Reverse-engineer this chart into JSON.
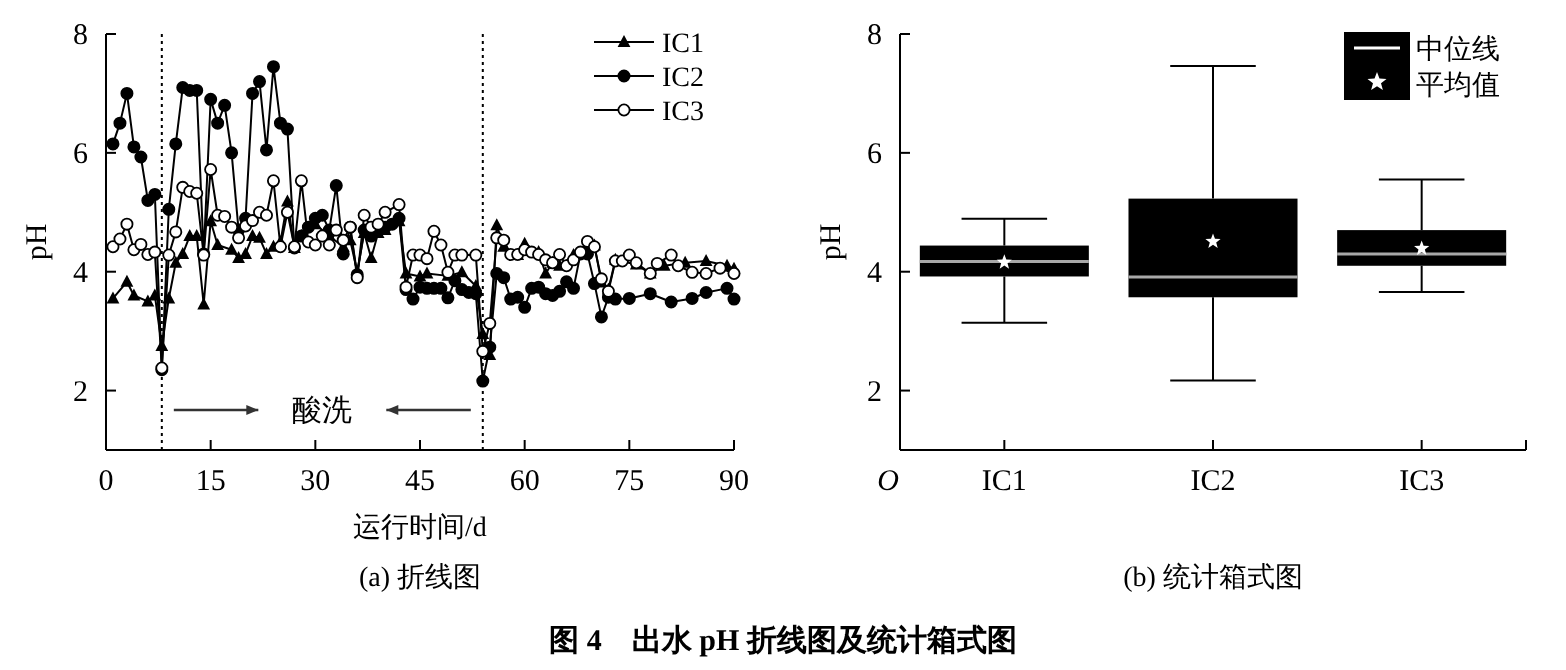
{
  "chart_data": [
    {
      "type": "line",
      "xlabel": "运行时间/d",
      "ylabel": "pH",
      "xlim": [
        0,
        90
      ],
      "ylim": [
        1,
        8
      ],
      "xticks": [
        0,
        15,
        30,
        45,
        60,
        75,
        90
      ],
      "yticks": [
        2,
        4,
        6,
        8
      ],
      "legend": "top right",
      "ref_lines": [
        {
          "axis": "x",
          "value": 8,
          "line_style": "dotted",
          "color": "#000000"
        },
        {
          "axis": "x",
          "value": 54,
          "line_style": "dotted",
          "color": "#000000"
        }
      ],
      "annotations": [
        "(a) 折线图",
        "图 4　出水 pH 折线图及统计箱式图",
        "酸洗"
      ],
      "series": [
        {
          "name": "IC1",
          "color": "#000000",
          "marker": "triangle",
          "x": [
            1,
            3,
            4,
            6,
            7,
            8,
            9,
            10,
            11,
            12,
            13,
            14,
            15,
            16,
            18,
            19,
            20,
            21,
            22,
            23,
            24,
            25,
            26,
            27,
            28,
            30,
            32,
            34,
            35,
            36,
            37,
            38,
            39,
            40,
            42,
            43,
            45,
            46,
            49,
            51,
            53,
            54,
            55,
            56,
            57,
            59,
            60,
            62,
            63,
            64,
            65,
            67,
            69,
            70,
            71,
            72,
            73,
            76,
            78,
            80,
            83,
            86,
            89,
            90
          ],
          "values": [
            3.55,
            3.83,
            3.6,
            3.5,
            3.6,
            2.75,
            3.55,
            4.15,
            4.3,
            4.6,
            4.6,
            3.45,
            4.85,
            4.45,
            4.37,
            4.23,
            4.3,
            4.6,
            4.57,
            4.3,
            4.42,
            4.5,
            5.18,
            4.4,
            4.6,
            4.8,
            4.6,
            4.42,
            4.53,
            4.0,
            4.65,
            4.23,
            4.65,
            4.7,
            4.85,
            3.97,
            3.92,
            3.97,
            3.93,
            3.99,
            3.76,
            2.95,
            2.6,
            4.78,
            4.42,
            4.28,
            4.47,
            4.33,
            3.97,
            4.15,
            4.1,
            4.28,
            4.42,
            4.44,
            3.82,
            3.7,
            4.2,
            4.12,
            3.97,
            4.1,
            4.15,
            4.18,
            4.1,
            4.05
          ]
        },
        {
          "name": "IC2",
          "color": "#000000",
          "marker": "circle",
          "x": [
            1,
            2,
            3,
            4,
            5,
            6,
            7,
            8,
            9,
            10,
            11,
            12,
            13,
            14,
            15,
            16,
            17,
            18,
            19,
            20,
            21,
            22,
            23,
            24,
            25,
            26,
            27,
            28,
            29,
            30,
            31,
            32,
            33,
            34,
            35,
            36,
            37,
            38,
            39,
            40,
            41,
            42,
            43,
            44,
            45,
            46,
            47,
            48,
            49,
            50,
            51,
            52,
            53,
            54,
            55,
            56,
            57,
            58,
            59,
            60,
            61,
            62,
            63,
            64,
            65,
            66,
            67,
            68,
            69,
            70,
            71,
            72,
            73,
            75,
            78,
            81,
            84,
            86,
            89,
            90
          ],
          "values": [
            6.15,
            6.5,
            7.0,
            6.1,
            5.93,
            5.2,
            5.3,
            2.35,
            5.05,
            6.15,
            7.1,
            7.05,
            7.05,
            4.3,
            6.9,
            6.5,
            6.8,
            6.0,
            4.7,
            4.9,
            7.0,
            7.2,
            6.05,
            7.45,
            6.5,
            6.4,
            4.4,
            4.6,
            4.75,
            4.9,
            4.95,
            4.7,
            5.45,
            4.3,
            4.75,
            3.95,
            4.7,
            4.6,
            4.7,
            4.75,
            4.8,
            4.9,
            3.7,
            3.54,
            3.74,
            3.72,
            3.72,
            3.72,
            3.56,
            3.85,
            3.7,
            3.65,
            3.63,
            2.16,
            2.73,
            3.97,
            3.9,
            3.54,
            3.57,
            3.4,
            3.72,
            3.74,
            3.63,
            3.6,
            3.67,
            3.83,
            3.72,
            4.3,
            4.3,
            3.8,
            3.24,
            3.57,
            3.54,
            3.55,
            3.63,
            3.49,
            3.55,
            3.65,
            3.72,
            3.54
          ]
        },
        {
          "name": "IC3",
          "color": "#000000",
          "marker": "circle",
          "x": [
            1,
            2,
            3,
            4,
            5,
            6,
            7,
            8,
            9,
            10,
            11,
            12,
            13,
            14,
            15,
            16,
            17,
            18,
            19,
            20,
            21,
            22,
            23,
            24,
            25,
            26,
            27,
            28,
            29,
            30,
            31,
            32,
            33,
            34,
            35,
            36,
            37,
            38,
            39,
            40,
            42,
            43,
            44,
            45,
            46,
            47,
            48,
            49,
            50,
            51,
            53,
            54,
            55,
            56,
            57,
            58,
            59,
            60,
            61,
            62,
            63,
            64,
            65,
            66,
            67,
            68,
            69,
            70,
            71,
            72,
            73,
            74,
            75,
            76,
            78,
            79,
            81,
            82,
            84,
            86,
            88,
            90
          ],
          "values": [
            4.42,
            4.55,
            4.8,
            4.37,
            4.46,
            4.29,
            4.33,
            2.38,
            4.28,
            4.67,
            5.42,
            5.35,
            5.32,
            4.28,
            5.72,
            4.95,
            4.93,
            4.75,
            4.57,
            4.77,
            4.86,
            5.0,
            4.95,
            5.53,
            4.42,
            5.0,
            4.42,
            5.53,
            4.5,
            4.45,
            4.6,
            4.45,
            4.7,
            4.53,
            4.75,
            3.9,
            4.95,
            4.75,
            4.8,
            5.0,
            5.13,
            3.74,
            4.28,
            4.28,
            4.22,
            4.68,
            4.45,
            3.99,
            4.28,
            4.28,
            4.28,
            2.66,
            3.13,
            4.57,
            4.53,
            4.29,
            4.29,
            4.37,
            4.33,
            4.29,
            4.2,
            4.15,
            4.29,
            4.1,
            4.2,
            4.33,
            4.51,
            4.42,
            3.88,
            3.67,
            4.18,
            4.18,
            4.28,
            4.15,
            3.97,
            4.14,
            4.28,
            4.1,
            3.99,
            3.97,
            4.06,
            3.97
          ]
        }
      ]
    },
    {
      "type": "box",
      "ylabel": "pH",
      "ylim": [
        1,
        8
      ],
      "yticks": [
        2,
        4,
        6,
        8
      ],
      "color": "#000000",
      "categories": [
        "IC1",
        "IC2",
        "IC3"
      ],
      "boxes": [
        {
          "low": 3.14,
          "q1": 3.92,
          "median": 4.17,
          "q3": 4.44,
          "high": 4.89,
          "mean": 4.16
        },
        {
          "low": 2.17,
          "q1": 3.57,
          "median": 3.91,
          "q3": 5.23,
          "high": 7.46,
          "mean": 4.51
        },
        {
          "low": 3.66,
          "q1": 4.1,
          "median": 4.3,
          "q3": 4.7,
          "high": 5.55,
          "mean": 4.39
        }
      ],
      "annotations": [
        "(b) 统计箱式图",
        "中位线",
        "平均值",
        "O"
      ]
    }
  ]
}
